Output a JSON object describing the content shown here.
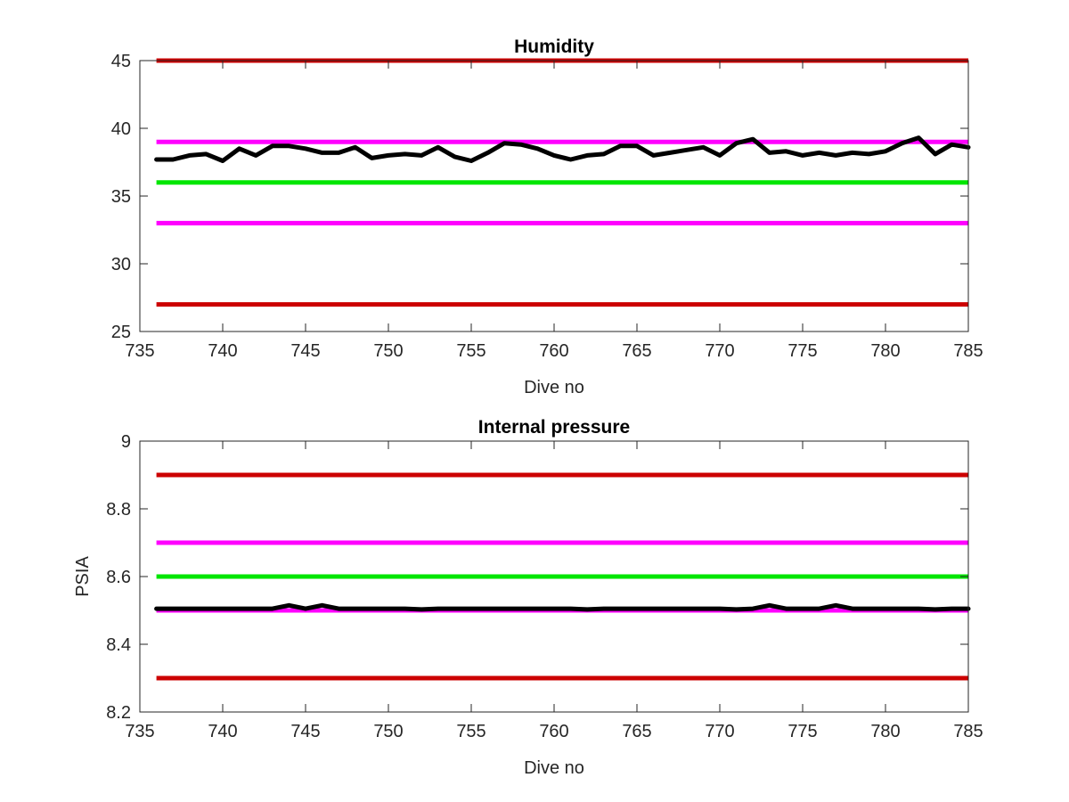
{
  "chart_data": [
    {
      "type": "line",
      "title": "Humidity",
      "xlabel": "Dive no",
      "ylabel": "",
      "xlim": [
        735,
        785
      ],
      "ylim": [
        25,
        45
      ],
      "xticks": [
        "735",
        "740",
        "745",
        "750",
        "755",
        "760",
        "765",
        "770",
        "775",
        "780",
        "785"
      ],
      "yticks": [
        "25",
        "30",
        "35",
        "40",
        "45"
      ],
      "grid": false,
      "reference_lines": [
        {
          "y": 45,
          "color": "#cc0000"
        },
        {
          "y": 39,
          "color": "#ff00ff"
        },
        {
          "y": 36,
          "color": "#00e600"
        },
        {
          "y": 33,
          "color": "#ff00ff"
        },
        {
          "y": 27,
          "color": "#cc0000"
        }
      ],
      "series": [
        {
          "color": "#000000",
          "x": [
            736,
            737,
            738,
            739,
            740,
            741,
            742,
            743,
            744,
            745,
            746,
            747,
            748,
            749,
            750,
            751,
            752,
            753,
            754,
            755,
            756,
            757,
            758,
            759,
            760,
            761,
            762,
            763,
            764,
            765,
            766,
            767,
            768,
            769,
            770,
            771,
            772,
            773,
            774,
            775,
            776,
            777,
            778,
            779,
            780,
            781,
            782,
            783,
            784,
            785
          ],
          "y": [
            37.7,
            37.7,
            38.0,
            38.1,
            37.6,
            38.5,
            38.0,
            38.7,
            38.7,
            38.5,
            38.2,
            38.2,
            38.6,
            37.8,
            38.0,
            38.1,
            38.0,
            38.6,
            37.9,
            37.6,
            38.2,
            38.9,
            38.8,
            38.5,
            38.0,
            37.7,
            38.0,
            38.1,
            38.7,
            38.7,
            38.0,
            38.2,
            38.4,
            38.6,
            38.0,
            38.9,
            39.2,
            38.2,
            38.3,
            38.0,
            38.2,
            38.0,
            38.2,
            38.1,
            38.3,
            38.9,
            39.3,
            38.1,
            38.8,
            38.6
          ]
        }
      ]
    },
    {
      "type": "line",
      "title": "Internal pressure",
      "xlabel": "Dive no",
      "ylabel": "PSIA",
      "xlim": [
        735,
        785
      ],
      "ylim": [
        8.2,
        9
      ],
      "xticks": [
        "735",
        "740",
        "745",
        "750",
        "755",
        "760",
        "765",
        "770",
        "775",
        "780",
        "785"
      ],
      "yticks": [
        "8.2",
        "8.4",
        "8.6",
        "8.8",
        "9"
      ],
      "grid": false,
      "reference_lines": [
        {
          "y": 8.9,
          "color": "#cc0000"
        },
        {
          "y": 8.7,
          "color": "#ff00ff"
        },
        {
          "y": 8.6,
          "color": "#00e600"
        },
        {
          "y": 8.5,
          "color": "#ff00ff"
        },
        {
          "y": 8.3,
          "color": "#cc0000"
        }
      ],
      "series": [
        {
          "color": "#000000",
          "x": [
            736,
            737,
            738,
            739,
            740,
            741,
            742,
            743,
            744,
            745,
            746,
            747,
            748,
            749,
            750,
            751,
            752,
            753,
            754,
            755,
            756,
            757,
            758,
            759,
            760,
            761,
            762,
            763,
            764,
            765,
            766,
            767,
            768,
            769,
            770,
            771,
            772,
            773,
            774,
            775,
            776,
            777,
            778,
            779,
            780,
            781,
            782,
            783,
            784,
            785
          ],
          "y": [
            8.505,
            8.505,
            8.505,
            8.505,
            8.505,
            8.505,
            8.505,
            8.505,
            8.515,
            8.505,
            8.515,
            8.505,
            8.505,
            8.505,
            8.505,
            8.505,
            8.503,
            8.505,
            8.505,
            8.505,
            8.505,
            8.505,
            8.505,
            8.505,
            8.505,
            8.505,
            8.503,
            8.505,
            8.505,
            8.505,
            8.505,
            8.505,
            8.505,
            8.505,
            8.505,
            8.503,
            8.505,
            8.515,
            8.505,
            8.505,
            8.505,
            8.515,
            8.505,
            8.505,
            8.505,
            8.505,
            8.505,
            8.503,
            8.505,
            8.505
          ]
        }
      ]
    }
  ]
}
